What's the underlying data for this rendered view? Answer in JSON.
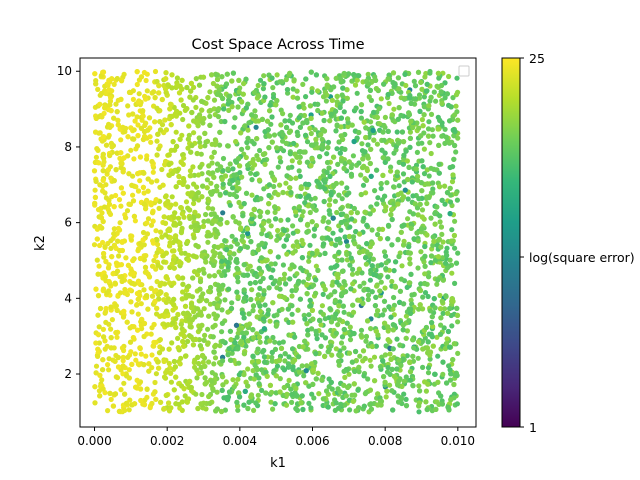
{
  "chart_data": {
    "type": "scatter",
    "title": "Cost Space Across Time",
    "xlabel": "k1",
    "ylabel": "k2",
    "xlim": [
      -0.0004,
      0.0105
    ],
    "ylim": [
      0.6,
      10.35
    ],
    "x_ticks": [
      0.0,
      0.002,
      0.004,
      0.006,
      0.008,
      0.01
    ],
    "x_tick_labels": [
      "0.000",
      "0.002",
      "0.004",
      "0.006",
      "0.008",
      "0.010"
    ],
    "y_ticks": [
      2,
      4,
      6,
      8,
      10
    ],
    "y_tick_labels": [
      "2",
      "4",
      "6",
      "8",
      "10"
    ],
    "grid": false,
    "legend": {
      "placement": "top-right",
      "entries": []
    },
    "colormap": "viridis",
    "colorbar": {
      "label": "log(square error)",
      "range": [
        1,
        25
      ],
      "ticks": [
        1,
        25
      ],
      "tick_labels": [
        "1",
        "25"
      ]
    },
    "data_summary": {
      "k1_range": [
        0.0,
        0.01
      ],
      "k2_range": [
        1.0,
        10.0
      ],
      "description_regions": [
        {
          "k1_from": 0.0,
          "k1_to": 0.0017,
          "color_value_approx": 24.5
        },
        {
          "k1_from": 0.0017,
          "k1_to": 0.0035,
          "color_value_approx": 22.5
        },
        {
          "k1_from": 0.0035,
          "k1_to": 0.01,
          "color_value_approx": 19.5
        }
      ]
    }
  },
  "colors": {
    "viridis_stops": [
      "#440154",
      "#482878",
      "#3e4989",
      "#31688e",
      "#26828e",
      "#1f9e89",
      "#35b779",
      "#6ece58",
      "#b5de2b",
      "#fde725"
    ]
  }
}
